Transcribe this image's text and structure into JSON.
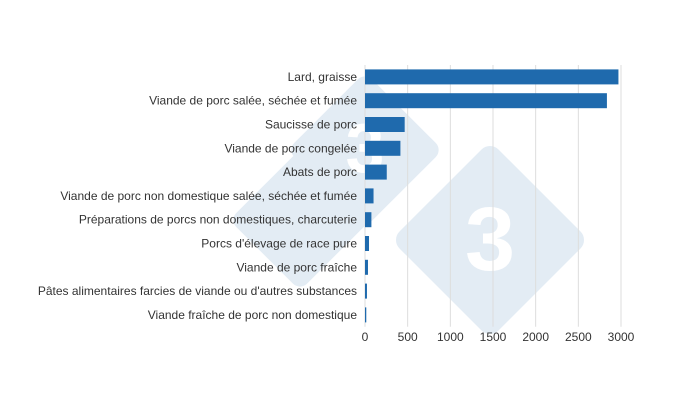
{
  "chart_data": {
    "type": "bar",
    "orientation": "horizontal",
    "categories": [
      "Lard, graisse",
      "Viande de porc salée, séchée et fumée",
      "Saucisse de porc",
      "Viande de porc congelée",
      "Abats de porc",
      "Viande de porc non domestique salée, séchée et fumée",
      "Préparations de porcs non domestiques, charcuterie",
      "Porcs d'élevage de race pure",
      "Viande de porc fraîche",
      "Pâtes alimentaires farcies de viande ou d'autres substances",
      "Viande fraîche de porc non domestique"
    ],
    "values": [
      2970,
      2835,
      465,
      415,
      255,
      100,
      75,
      47,
      35,
      23,
      15
    ],
    "xlim": [
      0,
      3000
    ],
    "xticks": [
      "0",
      "500",
      "1000",
      "1500",
      "2000",
      "2500",
      "3000"
    ],
    "grid": "vertical",
    "title": "",
    "xlabel": "",
    "ylabel": "",
    "bar_color": "#1f6aad",
    "watermark": "3"
  }
}
